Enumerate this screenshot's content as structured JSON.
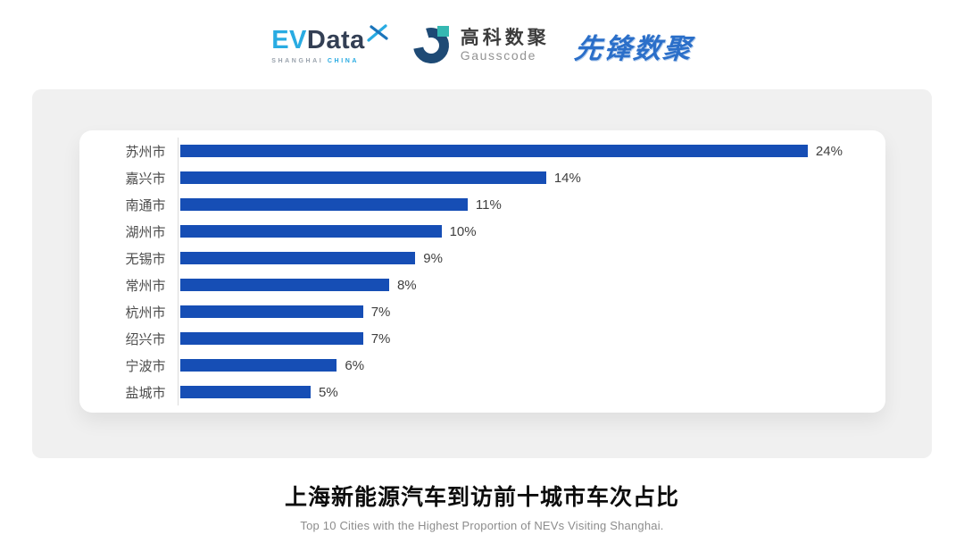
{
  "colors": {
    "evdata_cyan": "#29ABE2",
    "evdata_navy": "#333F54",
    "gausscode_navy": "#1E4A75",
    "gausscode_teal": "#35B8B2",
    "xianfeng_blue": "#2B6FC9",
    "bar_blue": "#164EB5",
    "panel_gray": "#F0F0F0"
  },
  "header": {
    "evdata": {
      "ev": "EV",
      "data": "Data",
      "sub_left": "SHANGHAI",
      "sub_right": "CHINA"
    },
    "gausscode": {
      "cn": "高科数聚",
      "en": "Gausscode"
    },
    "xianfeng": {
      "text": "先锋数聚"
    }
  },
  "chart_data": {
    "type": "bar",
    "orientation": "horizontal",
    "categories": [
      "苏州市",
      "嘉兴市",
      "南通市",
      "湖州市",
      "无锡市",
      "常州市",
      "杭州市",
      "绍兴市",
      "宁波市",
      "盐城市"
    ],
    "values": [
      24,
      14,
      11,
      10,
      9,
      8,
      7,
      7,
      6,
      5
    ],
    "value_labels": [
      "24%",
      "14%",
      "11%",
      "10%",
      "9%",
      "8%",
      "7%",
      "7%",
      "6%",
      "5%"
    ],
    "unit": "%",
    "xlim": [
      0,
      25
    ],
    "grid": false,
    "legend": false,
    "bar_color": "#164EB5",
    "title": "上海新能源汽车到访前十城市车次占比",
    "subtitle": "Top 10 Cities with the Highest Proportion of  NEVs Visiting Shanghai."
  }
}
